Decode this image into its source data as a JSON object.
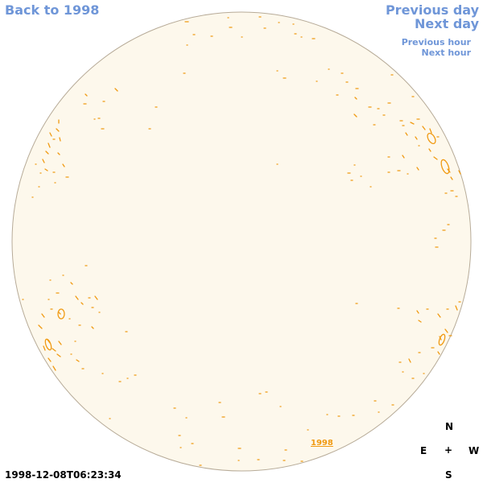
{
  "nav": {
    "back": "Back to 1998",
    "previous_day": "Previous day",
    "next_day": "Next day",
    "previous_hour": "Previous hour",
    "next_hour": "Next hour"
  },
  "disc": {
    "fill_color": "#fdf8ec",
    "border_color": "#b7ab98",
    "contour_color": "#f09a12",
    "year_label": "1998"
  },
  "compass": {
    "north": "N",
    "east": "E",
    "center": "+",
    "west": "W",
    "south": "S"
  },
  "timestamp": "1998-12-08T06:23:34"
}
